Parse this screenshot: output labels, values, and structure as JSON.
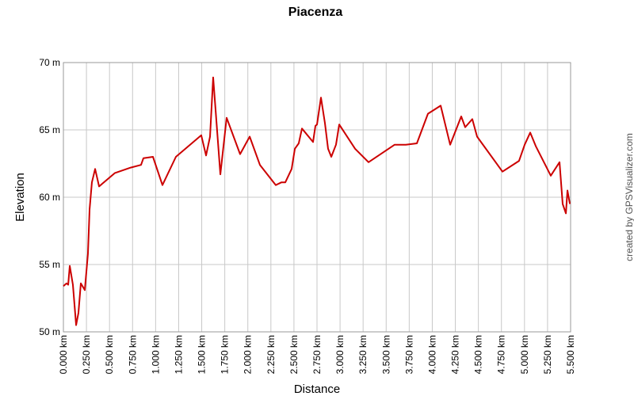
{
  "chart_data": {
    "type": "line",
    "title": "Piacenza",
    "x_label": "Distance",
    "y_label": "Elevation",
    "credit": "created by GPSVisualizer.com",
    "grid": true,
    "series": [
      {
        "name": "Elevation",
        "color": "#cc0000",
        "x": [
          0,
          0.034,
          0.052,
          0.069,
          0.103,
          0.138,
          0.163,
          0.189,
          0.232,
          0.266,
          0.284,
          0.309,
          0.344,
          0.387,
          0.559,
          0.73,
          0.842,
          0.868,
          0.971,
          1.074,
          1.22,
          1.495,
          1.547,
          1.59,
          1.624,
          1.702,
          1.77,
          1.916,
          2.02,
          2.131,
          2.303,
          2.363,
          2.406,
          2.475,
          2.51,
          2.552,
          2.587,
          2.707,
          2.733,
          2.75,
          2.793,
          2.836,
          2.87,
          2.905,
          2.956,
          2.991,
          3.163,
          3.309,
          3.592,
          3.713,
          3.833,
          3.953,
          4.091,
          4.194,
          4.314,
          4.357,
          4.434,
          4.486,
          4.761,
          4.941,
          5.002,
          5.062,
          5.122,
          5.285,
          5.38,
          5.414,
          5.449,
          5.466,
          5.492
        ],
        "values": [
          53.4,
          53.6,
          53.5,
          54.9,
          53.5,
          50.5,
          51.4,
          53.6,
          53.1,
          55.8,
          59.1,
          61.1,
          62.1,
          60.8,
          61.8,
          62.2,
          62.4,
          62.9,
          63.0,
          60.9,
          63.0,
          64.6,
          63.1,
          64.5,
          68.9,
          61.7,
          65.9,
          63.2,
          64.5,
          62.4,
          60.9,
          61.1,
          61.1,
          62.1,
          63.6,
          64.0,
          65.1,
          64.1,
          65.3,
          65.4,
          67.4,
          65.5,
          63.6,
          63.0,
          63.9,
          65.4,
          63.6,
          62.6,
          63.9,
          63.9,
          64.0,
          66.2,
          66.8,
          63.9,
          66.0,
          65.2,
          65.8,
          64.5,
          61.9,
          62.7,
          63.9,
          64.8,
          63.8,
          61.6,
          62.6,
          59.5,
          58.8,
          60.5,
          59.5
        ]
      }
    ],
    "xlim": [
      0,
      5.5
    ],
    "xticks": [
      {
        "value": 0,
        "label": "0.000 km"
      },
      {
        "value": 0.25,
        "label": "0.250 km"
      },
      {
        "value": 0.5,
        "label": "0.500 km"
      },
      {
        "value": 0.75,
        "label": "0.750 km"
      },
      {
        "value": 1,
        "label": "1.000 km"
      },
      {
        "value": 1.25,
        "label": "1.250 km"
      },
      {
        "value": 1.5,
        "label": "1.500 km"
      },
      {
        "value": 1.75,
        "label": "1.750 km"
      },
      {
        "value": 2,
        "label": "2.000 km"
      },
      {
        "value": 2.25,
        "label": "2.250 km"
      },
      {
        "value": 2.5,
        "label": "2.500 km"
      },
      {
        "value": 2.75,
        "label": "2.750 km"
      },
      {
        "value": 3,
        "label": "3.000 km"
      },
      {
        "value": 3.25,
        "label": "3.250 km"
      },
      {
        "value": 3.5,
        "label": "3.500 km"
      },
      {
        "value": 3.75,
        "label": "3.750 km"
      },
      {
        "value": 4,
        "label": "4.000 km"
      },
      {
        "value": 4.25,
        "label": "4.250 km"
      },
      {
        "value": 4.5,
        "label": "4.500 km"
      },
      {
        "value": 4.75,
        "label": "4.750 km"
      },
      {
        "value": 5,
        "label": "5.000 km"
      },
      {
        "value": 5.25,
        "label": "5.250 km"
      },
      {
        "value": 5.5,
        "label": "5.500 km"
      }
    ],
    "ylim": [
      50,
      70
    ],
    "yticks": [
      {
        "value": 50,
        "label": "50 m"
      },
      {
        "value": 55,
        "label": "55 m"
      },
      {
        "value": 60,
        "label": "60 m"
      },
      {
        "value": 65,
        "label": "65 m"
      },
      {
        "value": 70,
        "label": "70 m"
      }
    ]
  }
}
